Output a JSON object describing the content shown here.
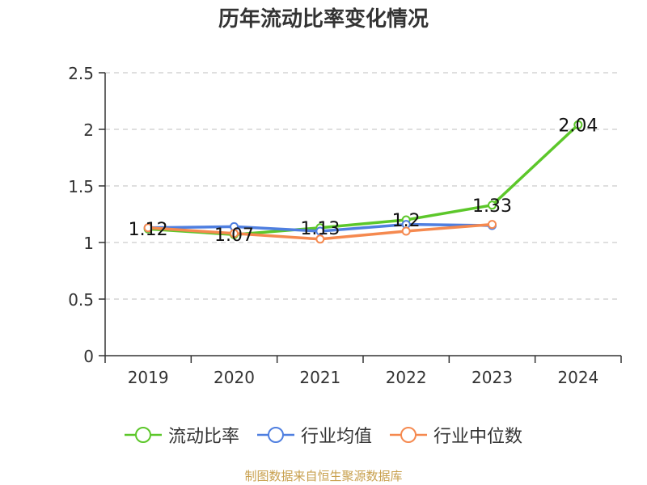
{
  "title": "历年流动比率变化情况",
  "source": "制图数据来自恒生聚源数据库",
  "chart_data": {
    "type": "line",
    "categories": [
      "2019",
      "2020",
      "2021",
      "2022",
      "2023",
      "2024"
    ],
    "ylim": [
      0,
      2.5
    ],
    "yticks": [
      "0",
      "0.5",
      "1",
      "1.5",
      "2",
      "2.5"
    ],
    "grid": true,
    "legend_position": "bottom",
    "series": [
      {
        "name": "流动比率",
        "color": "#5cc72a",
        "values": [
          1.12,
          1.07,
          1.13,
          1.2,
          1.33,
          2.04
        ],
        "labels": [
          "1.12",
          "1.07",
          "1.13",
          "1.2",
          "1.33",
          "2.04"
        ]
      },
      {
        "name": "行业均值",
        "color": "#4f7fe0",
        "values": [
          1.13,
          1.14,
          1.1,
          1.16,
          1.15,
          null
        ]
      },
      {
        "name": "行业中位数",
        "color": "#f5894f",
        "values": [
          1.13,
          1.08,
          1.03,
          1.1,
          1.16,
          null
        ]
      }
    ]
  }
}
